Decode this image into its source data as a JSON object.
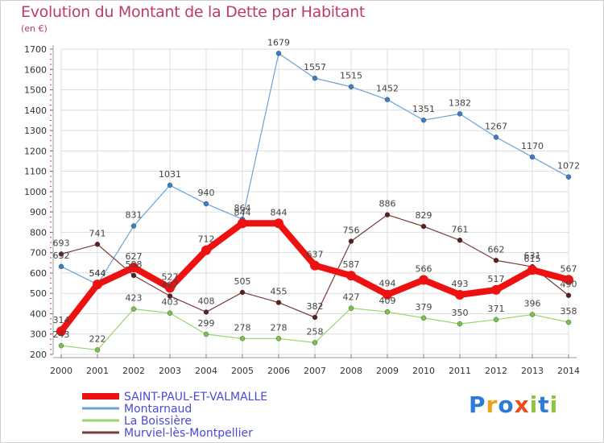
{
  "title": "Evolution du Montant de la Dette par Habitant",
  "unit_label": "(en €)",
  "brand": {
    "text": "Proxiti",
    "colors": [
      "#2c7bd6",
      "#f2a01c",
      "#2c7bd6",
      "#e94e1b",
      "#8cc63f",
      "#2c7bd6",
      "#8cc63f"
    ]
  },
  "chart_data": {
    "type": "line",
    "x": [
      "2000",
      "2001",
      "2002",
      "2003",
      "2004",
      "2005",
      "2006",
      "2007",
      "2008",
      "2009",
      "2010",
      "2011",
      "2012",
      "2013",
      "2014"
    ],
    "ylim": [
      200,
      1700
    ],
    "yticks": [
      200,
      300,
      400,
      500,
      600,
      700,
      800,
      900,
      1000,
      1100,
      1200,
      1300,
      1400,
      1500,
      1600,
      1700
    ],
    "grid": true,
    "legend_position": "bottom-left",
    "series": [
      {
        "name": "Montarnaud",
        "color": "#6aa3d8",
        "point_color": "#3a7fc4",
        "width": 1.2,
        "values": [
          632,
          544,
          831,
          1031,
          940,
          864,
          1679,
          1557,
          1515,
          1452,
          1351,
          1382,
          1267,
          1170,
          1072
        ]
      },
      {
        "name": "La Boissière",
        "color": "#9ad66b",
        "point_color": "#7cc24a",
        "width": 1.2,
        "values": [
          243,
          222,
          423,
          403,
          299,
          278,
          278,
          258,
          427,
          409,
          379,
          350,
          371,
          396,
          358
        ]
      },
      {
        "name": "Murviel-lès-Montpellier",
        "color": "#7a3a3a",
        "point_color": "#5a2020",
        "width": 1.2,
        "values": [
          693,
          741,
          588,
          487,
          408,
          505,
          455,
          382,
          756,
          886,
          829,
          761,
          662,
          631,
          490
        ]
      },
      {
        "name": "SAINT-PAUL-ET-VALMALLE",
        "color": "#ee1111",
        "point_color": "#ee1111",
        "width": 8,
        "values": [
          314,
          544,
          627,
          527,
          712,
          844,
          844,
          637,
          587,
          494,
          566,
          493,
          517,
          615,
          567
        ]
      }
    ],
    "legend_order": [
      "SAINT-PAUL-ET-VALMALLE",
      "Montarnaud",
      "La Boissière",
      "Murviel-lès-Montpellier"
    ]
  }
}
